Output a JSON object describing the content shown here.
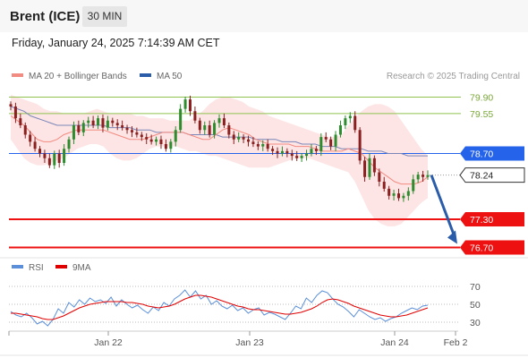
{
  "header": {
    "instrument": "Brent (ICE)",
    "timeframe": "30 MIN",
    "datetime": "Friday, January 24, 2025 7:14:39 AM CET"
  },
  "legend": {
    "items": [
      {
        "label": "MA 20 + Bollinger Bands",
        "color": "#f28b82"
      },
      {
        "label": "MA 50",
        "color": "#2a5caa"
      }
    ],
    "copyright": "Research © 2025 Trading Central"
  },
  "rsi_legend": {
    "items": [
      {
        "label": "RSI",
        "color": "#5b8fd9"
      },
      {
        "label": "9MA",
        "color": "#e00000"
      }
    ]
  },
  "colors": {
    "up": "#2e8b2e",
    "down": "#8b2020",
    "band_fill": "#fde0e0",
    "ma20": "#f28b82",
    "ma50": "#7a86b8",
    "resistance": "#8fc24f",
    "pivot": "#2563eb",
    "support": "#ee1111",
    "arrow": "#2a5caa",
    "current_price_label": "#222222",
    "rsi": "#5b8fd9",
    "rsi_ma": "#e00000"
  },
  "chart_data": [
    {
      "type": "candlestick",
      "title": "",
      "xlabel": "",
      "ylabel": "",
      "ylim": [
        76.5,
        80.1
      ],
      "x_ticks": [
        "Jan 22",
        "Jan 23",
        "Jan 24",
        "Feb 2"
      ],
      "levels": [
        {
          "value": 79.9,
          "label": "79.90",
          "role": "resistance"
        },
        {
          "value": 79.55,
          "label": "79.55",
          "role": "resistance"
        },
        {
          "value": 78.7,
          "label": "78.70",
          "role": "pivot"
        },
        {
          "value": 77.3,
          "label": "77.30",
          "role": "support"
        },
        {
          "value": 76.7,
          "label": "76.70",
          "role": "support"
        }
      ],
      "current_price": {
        "value": 78.24,
        "label": "78.24"
      },
      "forecast_arrow": {
        "from": 78.24,
        "to": 76.7,
        "direction": "down"
      },
      "close_series": [
        79.7,
        79.45,
        79.3,
        79.1,
        78.95,
        78.8,
        78.7,
        78.6,
        78.45,
        78.7,
        78.5,
        78.8,
        79.0,
        79.3,
        79.15,
        79.35,
        79.4,
        79.3,
        79.45,
        79.25,
        79.4,
        79.35,
        79.3,
        79.25,
        79.2,
        79.15,
        79.1,
        79.05,
        79.0,
        78.95,
        79.0,
        78.9,
        78.8,
        78.95,
        79.2,
        79.65,
        79.85,
        79.6,
        79.4,
        79.2,
        79.3,
        79.1,
        79.35,
        79.45,
        79.3,
        79.1,
        79.0,
        79.05,
        79.0,
        78.95,
        78.9,
        78.85,
        78.9,
        78.8,
        78.75,
        78.7,
        78.75,
        78.7,
        78.65,
        78.6,
        78.65,
        78.7,
        78.8,
        78.75,
        79.05,
        79.0,
        78.85,
        79.1,
        79.3,
        79.45,
        79.5,
        79.2,
        78.55,
        78.2,
        78.6,
        78.3,
        78.1,
        77.95,
        77.8,
        77.85,
        77.75,
        77.8,
        77.9,
        78.15,
        78.25,
        78.2,
        78.24
      ],
      "bollinger_upper": [
        79.95,
        79.9,
        79.85,
        79.8,
        79.75,
        79.65,
        79.6,
        79.6,
        79.55,
        79.55,
        79.55,
        79.55,
        79.6,
        79.65,
        79.6,
        79.55,
        79.55,
        79.55,
        79.55,
        79.5,
        79.5,
        79.45,
        79.45,
        79.45,
        79.4,
        79.4,
        79.4,
        79.4,
        79.5,
        79.6,
        79.75,
        79.85,
        79.9,
        79.9,
        79.85,
        79.8,
        79.7,
        79.65,
        79.6,
        79.5,
        79.45,
        79.4,
        79.35,
        79.3,
        79.25,
        79.2,
        79.15,
        79.1,
        79.05,
        79.05,
        79.1,
        79.3,
        79.45,
        79.6,
        79.7,
        79.75,
        79.75,
        79.7,
        79.6,
        79.4,
        79.2,
        79.0,
        78.8,
        78.65
      ],
      "bollinger_lower": [
        79.0,
        78.8,
        78.6,
        78.5,
        78.45,
        78.45,
        78.5,
        78.55,
        78.6,
        78.7,
        78.8,
        78.85,
        78.9,
        78.9,
        78.85,
        78.7,
        78.6,
        78.55,
        78.55,
        78.6,
        78.7,
        78.8,
        78.85,
        78.85,
        78.85,
        78.85,
        78.8,
        78.75,
        78.75,
        78.7,
        78.65,
        78.65,
        78.6,
        78.55,
        78.5,
        78.45,
        78.4,
        78.4,
        78.4,
        78.4,
        78.45,
        78.5,
        78.55,
        78.6,
        78.6,
        78.6,
        78.55,
        78.5,
        78.45,
        78.4,
        78.35,
        78.3,
        78.1,
        77.8,
        77.5,
        77.3,
        77.2,
        77.15,
        77.15,
        77.2,
        77.35,
        77.5,
        77.65,
        77.75
      ],
      "ma20": [
        79.5,
        79.4,
        79.3,
        79.15,
        79.0,
        78.95,
        78.95,
        79.0,
        79.1,
        79.15,
        79.2,
        79.2,
        79.2,
        79.2,
        79.2,
        79.15,
        79.1,
        79.05,
        79.0,
        79.0,
        79.0,
        79.05,
        79.1,
        79.15,
        79.15,
        79.15,
        79.15,
        79.1,
        79.05,
        79.0,
        79.0,
        79.1,
        79.2,
        79.25,
        79.2,
        79.15,
        79.1,
        79.0,
        78.95,
        78.9,
        78.9,
        78.9,
        78.9,
        78.85,
        78.85,
        78.85,
        78.8,
        78.75,
        78.75,
        78.75,
        78.75,
        78.8,
        78.75,
        78.7,
        78.55,
        78.4,
        78.3,
        78.2,
        78.1,
        78.05,
        78.05,
        78.05,
        78.1,
        78.2
      ],
      "ma50": [
        79.7,
        79.65,
        79.6,
        79.5,
        79.45,
        79.4,
        79.35,
        79.3,
        79.3,
        79.3,
        79.3,
        79.3,
        79.3,
        79.3,
        79.3,
        79.25,
        79.25,
        79.25,
        79.25,
        79.2,
        79.2,
        79.2,
        79.15,
        79.15,
        79.15,
        79.15,
        79.15,
        79.1,
        79.1,
        79.1,
        79.1,
        79.1,
        79.05,
        79.05,
        79.05,
        79.05,
        79.05,
        79.0,
        79.0,
        79.0,
        79.0,
        78.95,
        78.95,
        78.95,
        78.9,
        78.9,
        78.9,
        78.85,
        78.85,
        78.85,
        78.8,
        78.8,
        78.8,
        78.8,
        78.75,
        78.75,
        78.75,
        78.7,
        78.7,
        78.7,
        78.65,
        78.65,
        78.65,
        78.65
      ]
    },
    {
      "type": "line",
      "title": "",
      "xlabel": "",
      "ylabel": "",
      "ylim": [
        20,
        75
      ],
      "y_ticks": [
        70,
        50,
        30
      ],
      "series": [
        {
          "name": "RSI",
          "values": [
            42,
            38,
            36,
            40,
            35,
            28,
            31,
            26,
            33,
            45,
            40,
            52,
            47,
            55,
            50,
            57,
            53,
            55,
            51,
            58,
            48,
            55,
            50,
            46,
            49,
            44,
            40,
            47,
            43,
            52,
            48,
            56,
            60,
            66,
            58,
            65,
            56,
            60,
            50,
            54,
            48,
            45,
            49,
            43,
            46,
            40,
            44,
            46,
            38,
            41,
            39,
            36,
            33,
            40,
            48,
            45,
            57,
            52,
            60,
            65,
            63,
            56,
            50,
            47,
            42,
            36,
            44,
            40,
            36,
            33,
            35,
            31,
            34,
            36,
            40,
            43,
            46,
            44,
            48,
            49
          ]
        },
        {
          "name": "9MA",
          "values": [
            40,
            40,
            39,
            38,
            37,
            36,
            34,
            33,
            33,
            35,
            37,
            40,
            43,
            46,
            48,
            50,
            51,
            52,
            53,
            53,
            53,
            53,
            52,
            52,
            51,
            50,
            48,
            47,
            46,
            47,
            48,
            50,
            53,
            56,
            58,
            60,
            60,
            59,
            58,
            56,
            54,
            52,
            50,
            48,
            47,
            45,
            44,
            44,
            43,
            42,
            41,
            40,
            39,
            39,
            40,
            41,
            43,
            45,
            48,
            52,
            55,
            56,
            55,
            53,
            51,
            48,
            46,
            44,
            42,
            40,
            38,
            37,
            36,
            36,
            37,
            38,
            40,
            42,
            44,
            46
          ]
        }
      ]
    }
  ]
}
